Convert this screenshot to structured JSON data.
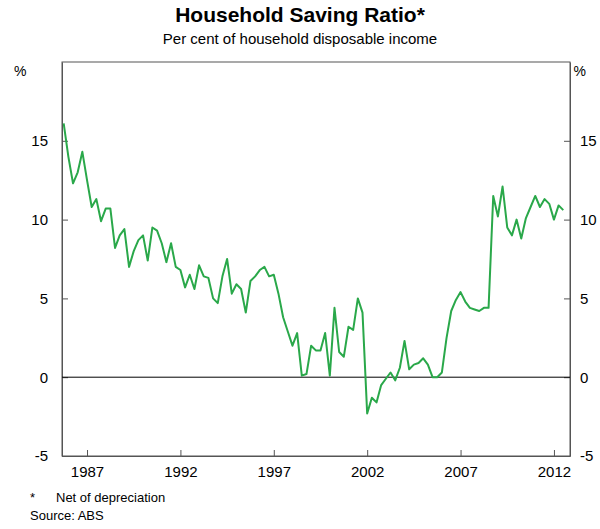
{
  "chart_data": {
    "type": "line",
    "title": "Household Saving Ratio*",
    "subtitle": "Per cent of household disposable income",
    "y_label": "%",
    "footnote": {
      "marker": "*",
      "text": "Net of depreciation"
    },
    "source": "Source: ABS",
    "color": "#2aa84a",
    "grid": false,
    "x": [
      1985.75,
      1986,
      1986.25,
      1986.5,
      1986.75,
      1987,
      1987.25,
      1987.5,
      1987.75,
      1988,
      1988.25,
      1988.5,
      1988.75,
      1989,
      1989.25,
      1989.5,
      1989.75,
      1990,
      1990.25,
      1990.5,
      1990.75,
      1991,
      1991.25,
      1991.5,
      1991.75,
      1992,
      1992.25,
      1992.5,
      1992.75,
      1993,
      1993.25,
      1993.5,
      1993.75,
      1994,
      1994.25,
      1994.5,
      1994.75,
      1995,
      1995.25,
      1995.5,
      1995.75,
      1996,
      1996.25,
      1996.5,
      1996.75,
      1997,
      1997.25,
      1997.5,
      1997.75,
      1998,
      1998.25,
      1998.5,
      1998.75,
      1999,
      1999.25,
      1999.5,
      1999.75,
      2000,
      2000.25,
      2000.5,
      2000.75,
      2001,
      2001.25,
      2001.5,
      2001.75,
      2002,
      2002.25,
      2002.5,
      2002.75,
      2003,
      2003.25,
      2003.5,
      2003.75,
      2004,
      2004.25,
      2004.5,
      2004.75,
      2005,
      2005.25,
      2005.5,
      2005.75,
      2006,
      2006.25,
      2006.5,
      2006.75,
      2007,
      2007.25,
      2007.5,
      2007.75,
      2008,
      2008.25,
      2008.5,
      2008.75,
      2009,
      2009.25,
      2009.5,
      2009.75,
      2010,
      2010.25,
      2010.5,
      2010.75,
      2011,
      2011.25,
      2011.5,
      2011.75,
      2012,
      2012.25,
      2012.5
    ],
    "values": [
      16.1,
      14.0,
      12.3,
      13.0,
      14.3,
      12.5,
      10.8,
      11.3,
      9.9,
      10.7,
      10.7,
      8.2,
      9.0,
      9.4,
      7.0,
      8.0,
      8.7,
      9.0,
      7.4,
      9.5,
      9.3,
      8.5,
      7.3,
      8.5,
      7.0,
      6.8,
      5.7,
      6.5,
      5.6,
      7.1,
      6.4,
      6.3,
      5.0,
      4.7,
      6.4,
      7.5,
      5.3,
      5.9,
      5.6,
      4.1,
      6.1,
      6.4,
      6.8,
      7.0,
      6.4,
      6.5,
      5.3,
      3.8,
      2.9,
      2.0,
      2.8,
      0.1,
      0.2,
      2.0,
      1.7,
      1.7,
      2.8,
      0.1,
      4.4,
      1.6,
      1.3,
      3.2,
      3.0,
      5.0,
      4.1,
      -2.3,
      -1.3,
      -1.6,
      -0.5,
      -0.1,
      0.3,
      -0.2,
      0.6,
      2.3,
      0.5,
      0.8,
      0.9,
      1.2,
      0.8,
      0.0,
      0.0,
      0.3,
      2.5,
      4.2,
      4.9,
      5.4,
      4.8,
      4.4,
      4.3,
      4.2,
      4.4,
      4.4,
      11.5,
      10.2,
      12.1,
      9.5,
      9.0,
      10.0,
      8.8,
      10.1,
      10.8,
      11.5,
      10.8,
      11.3,
      11.0,
      10.0,
      10.9,
      10.6
    ],
    "xlim": [
      1985.66,
      2012.86
    ],
    "xticks": [
      1987,
      1992,
      1997,
      2002,
      2007,
      2012
    ],
    "ylim": [
      -5,
      20
    ],
    "yticks": [
      -5,
      0,
      5,
      10,
      15
    ]
  }
}
